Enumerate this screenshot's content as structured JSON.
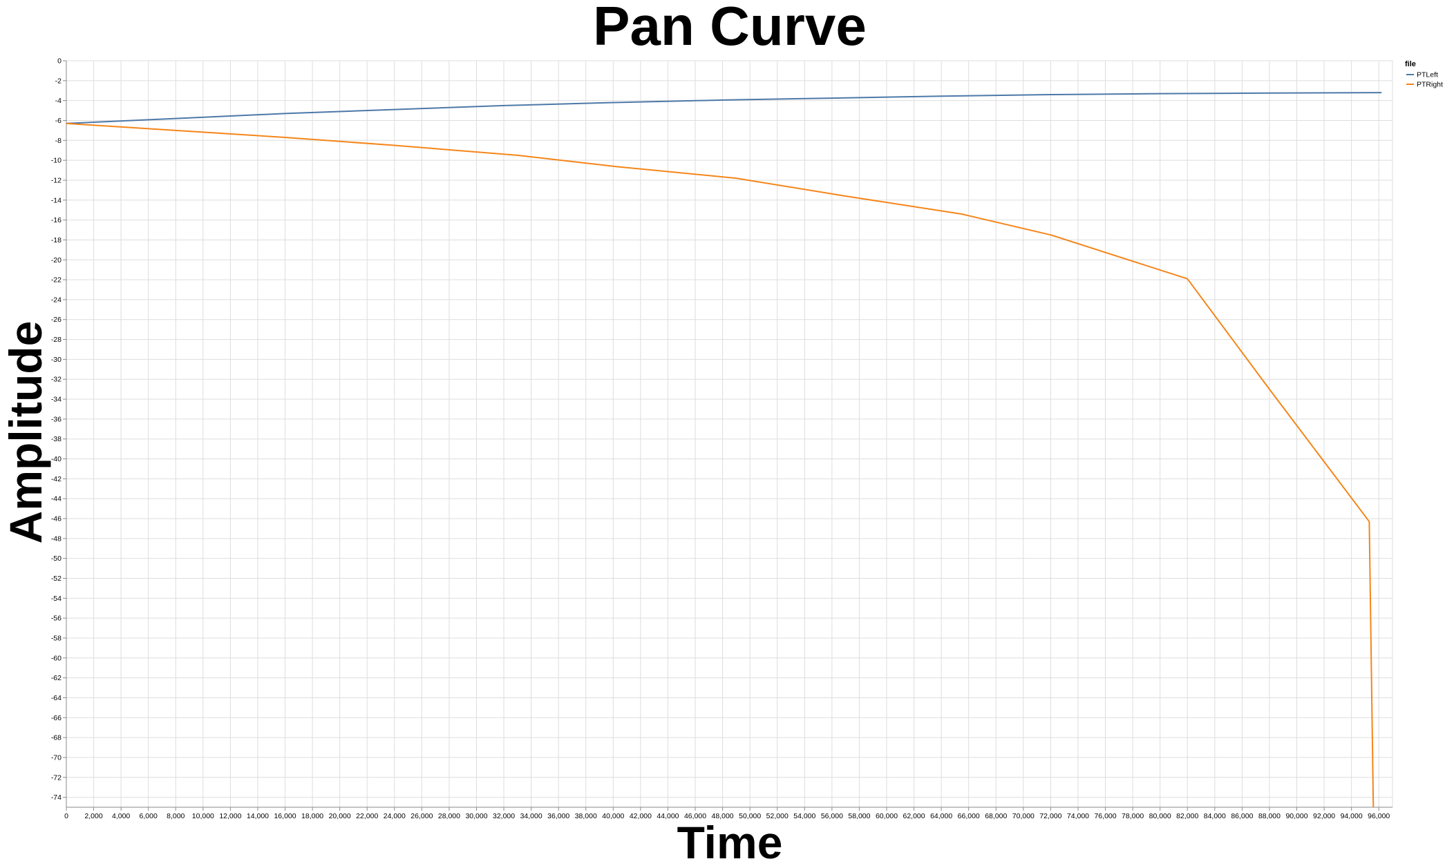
{
  "chart_data": {
    "type": "line",
    "title": "Pan Curve",
    "xlabel": "Time",
    "ylabel": "Amplitude",
    "xlim": [
      0,
      97000
    ],
    "ylim": [
      -75,
      0
    ],
    "x_ticks": [
      "0",
      "2,000",
      "4,000",
      "6,000",
      "8,000",
      "10,000",
      "12,000",
      "14,000",
      "16,000",
      "18,000",
      "20,000",
      "22,000",
      "24,000",
      "26,000",
      "28,000",
      "30,000",
      "32,000",
      "34,000",
      "36,000",
      "38,000",
      "40,000",
      "42,000",
      "44,000",
      "46,000",
      "48,000",
      "50,000",
      "52,000",
      "54,000",
      "56,000",
      "58,000",
      "60,000",
      "62,000",
      "64,000",
      "66,000",
      "68,000",
      "70,000",
      "72,000",
      "74,000",
      "76,000",
      "78,000",
      "80,000",
      "82,000",
      "84,000",
      "86,000",
      "88,000",
      "90,000",
      "92,000",
      "94,000",
      "96,000"
    ],
    "y_ticks": [
      "0",
      "-2",
      "-4",
      "-6",
      "-8",
      "-10",
      "-12",
      "-14",
      "-16",
      "-18",
      "-20",
      "-22",
      "-24",
      "-26",
      "-28",
      "-30",
      "-32",
      "-34",
      "-36",
      "-38",
      "-40",
      "-42",
      "-44",
      "-46",
      "-48",
      "-50",
      "-52",
      "-54",
      "-56",
      "-58",
      "-60",
      "-62",
      "-64",
      "-66",
      "-68",
      "-70",
      "-72",
      "-74"
    ],
    "grid": true,
    "legend": {
      "title": "file",
      "position": "top-right"
    },
    "series": [
      {
        "name": "PTLeft",
        "color": "#4c78a8",
        "x": [
          0,
          8000,
          16000,
          24000,
          32000,
          40000,
          48000,
          56000,
          64000,
          72000,
          80000,
          88000,
          96200
        ],
        "y": [
          -6.3,
          -5.8,
          -5.3,
          -4.9,
          -4.5,
          -4.2,
          -3.95,
          -3.75,
          -3.55,
          -3.4,
          -3.3,
          -3.25,
          -3.2
        ]
      },
      {
        "name": "PTRight",
        "color": "#f58518",
        "x": [
          0,
          8000,
          16000,
          24000,
          33000,
          40000,
          49000,
          57000,
          65500,
          72000,
          82000,
          88000,
          95300,
          95600
        ],
        "y": [
          -6.3,
          -7.0,
          -7.7,
          -8.5,
          -9.5,
          -10.6,
          -11.8,
          -13.6,
          -15.4,
          -17.5,
          -21.9,
          -33.0,
          -46.3,
          -75.0
        ]
      }
    ]
  }
}
